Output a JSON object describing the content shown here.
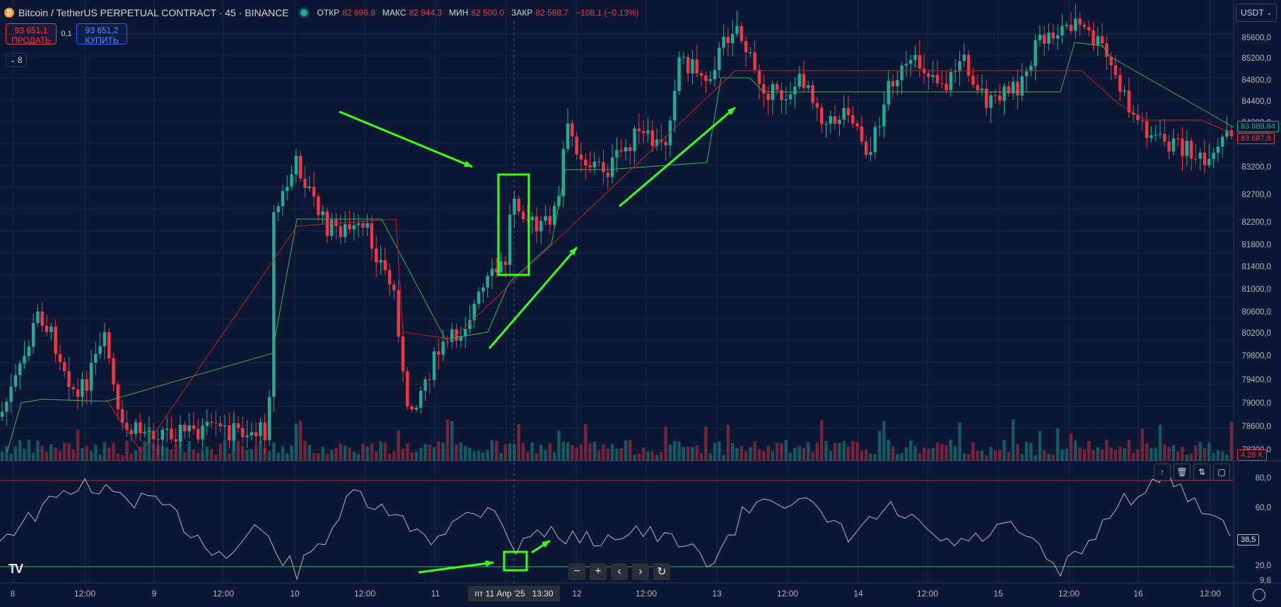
{
  "header": {
    "symbol_title": "Bitcoin / TetherUS PERPETUAL CONTRACT · 45 · BINANCE",
    "logo_glyph": "₿",
    "ohlc": [
      {
        "key": "ОТКР",
        "value": "82 696,8"
      },
      {
        "key": "МАКС",
        "value": "82 944,3"
      },
      {
        "key": "МИН",
        "value": "82 500,0"
      },
      {
        "key": "ЗАКР",
        "value": "82 588,7"
      }
    ],
    "change": "−108,1 (−0,13%)"
  },
  "trade": {
    "sell_price": "93 651,1",
    "sell_label": "ПРОДАТЬ",
    "spread": "0,1",
    "buy_price": "93 651,2",
    "buy_label": "КУПИТЬ"
  },
  "indicators_collapse": {
    "icon": "chevron-down-icon",
    "count": "8"
  },
  "currency_select": {
    "value": "USDT"
  },
  "price_axis": [
    "85600,0",
    "85200,0",
    "84800,0",
    "84400,0",
    "84000,0",
    "83200,0",
    "82700,0",
    "82200,0",
    "81800,0",
    "81400,0",
    "81000,0",
    "80600,0",
    "80200,0",
    "79800,0",
    "79400,0",
    "79000,0",
    "78600,0",
    "78200,0"
  ],
  "price_tags": {
    "green_line": "83 889,64",
    "last_price": "83 687,8",
    "volume": "4,28 K"
  },
  "rsi_axis": [
    "80,0",
    "60,0",
    "20,0",
    "9,6"
  ],
  "rsi_value": "38,5",
  "time_axis": [
    "8",
    "12:00",
    "9",
    "12:00",
    "10",
    "12:00",
    "11",
    "12",
    "12:00",
    "13",
    "12:00",
    "14",
    "12:00",
    "15",
    "12:00",
    "16",
    "12:00"
  ],
  "crosshair_date": {
    "day": "пт 11 Апр '25",
    "time": "13:30"
  },
  "colors": {
    "bg": "#0b1733",
    "up": "#22ab94",
    "down": "#f23645",
    "arrow": "#39ff14",
    "rsi": "#b2b5be"
  }
}
